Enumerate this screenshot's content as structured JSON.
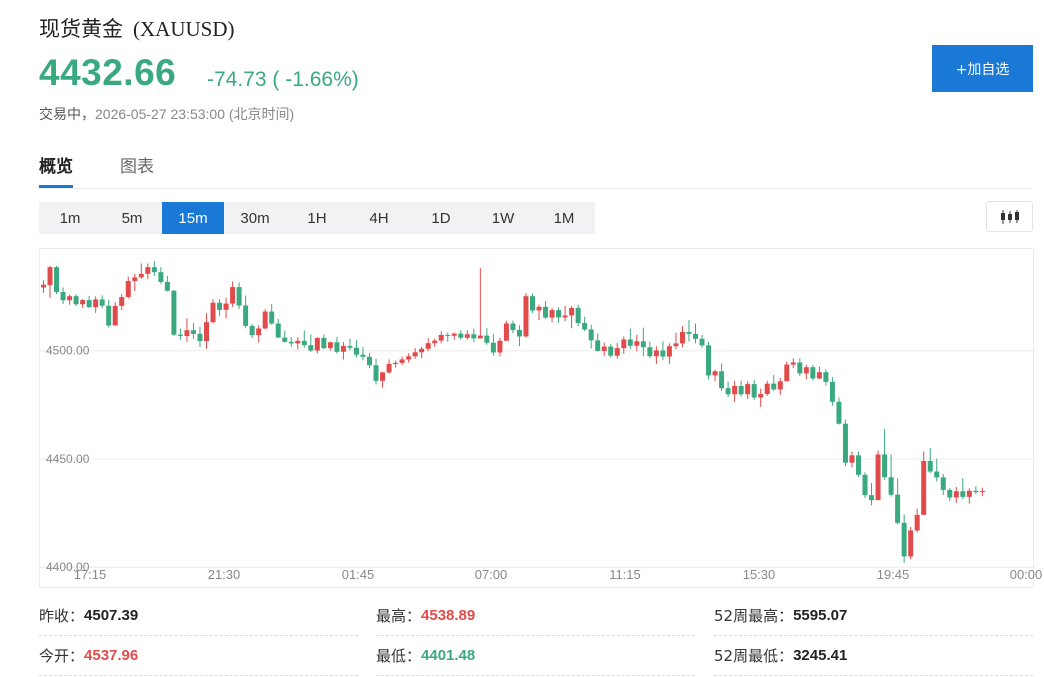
{
  "header": {
    "name": "现货黄金",
    "code": "(XAUUSD)",
    "price": "4432.66",
    "change": "-74.73 ( -1.66%)",
    "status": "交易中，",
    "timestamp": "2026-05-27 23:53:00 (北京时间)",
    "add_label": "+加自选"
  },
  "tabs": [
    {
      "label": "概览",
      "active": true
    },
    {
      "label": "图表",
      "active": false
    }
  ],
  "intervals": [
    {
      "label": "1m",
      "active": false
    },
    {
      "label": "5m",
      "active": false
    },
    {
      "label": "15m",
      "active": true
    },
    {
      "label": "30m",
      "active": false
    },
    {
      "label": "1H",
      "active": false
    },
    {
      "label": "4H",
      "active": false
    },
    {
      "label": "1D",
      "active": false
    },
    {
      "label": "1W",
      "active": false
    },
    {
      "label": "1M",
      "active": false
    }
  ],
  "colors": {
    "up": "#e24b4b",
    "down": "#3aa980",
    "accent": "#1a78d6"
  },
  "chart_data": {
    "type": "candlestick",
    "interval": "15m",
    "y_ticks": [
      "4500.00",
      "4450.00",
      "4400.00"
    ],
    "y_tick_values": [
      4500,
      4450,
      4400
    ],
    "ylim": [
      4397.8,
      4547.0
    ],
    "x_ticks": [
      "17:15",
      "21:30",
      "01:45",
      "07:00",
      "11:15",
      "15:30",
      "19:45",
      "00:00"
    ],
    "grid": true,
    "candles_ohlc": [
      [
        4529.2,
        4532.5,
        4526.8,
        4530.5
      ],
      [
        4530.3,
        4539.2,
        4524.4,
        4538.6
      ],
      [
        4538.6,
        4539.2,
        4526.2,
        4527.1
      ],
      [
        4527.1,
        4529.3,
        4521.6,
        4523.3
      ],
      [
        4523.3,
        4526.0,
        4521.3,
        4525.2
      ],
      [
        4525.2,
        4526.0,
        4520.6,
        4521.5
      ],
      [
        4521.5,
        4523.9,
        4519.8,
        4523.4
      ],
      [
        4523.4,
        4525.3,
        4519.8,
        4520.1
      ],
      [
        4520.1,
        4525.1,
        4517.5,
        4523.7
      ],
      [
        4523.7,
        4525.6,
        4519.7,
        4520.8
      ],
      [
        4520.8,
        4523.5,
        4510.7,
        4511.7
      ],
      [
        4511.7,
        4522.4,
        4511.7,
        4520.7
      ],
      [
        4520.7,
        4526.2,
        4518.7,
        4524.8
      ],
      [
        4524.8,
        4534.2,
        4524.1,
        4532.2
      ],
      [
        4532.2,
        4535.5,
        4527.6,
        4533.9
      ],
      [
        4533.9,
        4540.3,
        4533.2,
        4535.5
      ],
      [
        4535.5,
        4540.3,
        4533.0,
        4538.6
      ],
      [
        4538.6,
        4541.3,
        4534.5,
        4536.3
      ],
      [
        4536.3,
        4538.6,
        4530.9,
        4531.8
      ],
      [
        4531.8,
        4534.5,
        4527.4,
        4527.7
      ],
      [
        4527.7,
        4528.2,
        4506.8,
        4507.4
      ],
      [
        4507.4,
        4510.2,
        4505.1,
        4506.8
      ],
      [
        4506.8,
        4515.0,
        4504.0,
        4509.5
      ],
      [
        4509.5,
        4512.8,
        4505.5,
        4507.8
      ],
      [
        4507.8,
        4511.1,
        4501.7,
        4504.5
      ],
      [
        4504.5,
        4517.3,
        4500.9,
        4513.2
      ],
      [
        4513.2,
        4523.9,
        4512.6,
        4522.2
      ],
      [
        4522.2,
        4523.9,
        4516.1,
        4518.9
      ],
      [
        4518.9,
        4524.4,
        4514.9,
        4521.8
      ],
      [
        4521.8,
        4532.0,
        4520.2,
        4529.4
      ],
      [
        4529.4,
        4531.6,
        4519.2,
        4520.9
      ],
      [
        4520.9,
        4525.5,
        4510.4,
        4511.5
      ],
      [
        4511.5,
        4512.3,
        4505.8,
        4507.2
      ],
      [
        4507.2,
        4511.8,
        4503.8,
        4510.3
      ],
      [
        4510.3,
        4519.2,
        4509.9,
        4518.1
      ],
      [
        4518.1,
        4521.6,
        4512.0,
        4512.6
      ],
      [
        4512.6,
        4514.7,
        4505.9,
        4506.1
      ],
      [
        4506.1,
        4509.4,
        4503.8,
        4504.1
      ],
      [
        4504.1,
        4506.3,
        4501.9,
        4503.4
      ],
      [
        4503.4,
        4506.3,
        4500.6,
        4504.6
      ],
      [
        4504.6,
        4509.4,
        4501.3,
        4502.6
      ],
      [
        4502.6,
        4507.5,
        4499.5,
        4500.1
      ],
      [
        4500.1,
        4506.3,
        4498.8,
        4505.9
      ],
      [
        4505.9,
        4507.5,
        4500.7,
        4501.2
      ],
      [
        4501.2,
        4504.2,
        4500.1,
        4503.9
      ],
      [
        4503.9,
        4506.3,
        4498.8,
        4499.5
      ],
      [
        4499.5,
        4504.0,
        4495.9,
        4502.2
      ],
      [
        4502.2,
        4505.6,
        4500.2,
        4501.4
      ],
      [
        4501.4,
        4505.0,
        4496.8,
        4498.2
      ],
      [
        4498.2,
        4501.7,
        4495.5,
        4497.2
      ],
      [
        4497.2,
        4499.0,
        4491.9,
        4493.3
      ],
      [
        4493.3,
        4496.3,
        4484.4,
        4486.1
      ],
      [
        4486.1,
        4490.2,
        4482.9,
        4490.0
      ],
      [
        4490.0,
        4496.0,
        4489.3,
        4493.9
      ],
      [
        4493.9,
        4495.5,
        4492.3,
        4494.4
      ],
      [
        4494.4,
        4497.3,
        4493.5,
        4496.0
      ],
      [
        4496.0,
        4498.8,
        4494.5,
        4497.4
      ],
      [
        4497.4,
        4501.3,
        4496.3,
        4499.3
      ],
      [
        4499.3,
        4501.8,
        4496.6,
        4500.9
      ],
      [
        4500.9,
        4505.8,
        4499.8,
        4503.5
      ],
      [
        4503.5,
        4505.6,
        4501.9,
        4504.7
      ],
      [
        4504.7,
        4509.0,
        4503.4,
        4507.3
      ],
      [
        4507.3,
        4508.5,
        4504.2,
        4506.9
      ],
      [
        4506.9,
        4508.4,
        4505.0,
        4507.9
      ],
      [
        4507.9,
        4509.5,
        4505.1,
        4506.0
      ],
      [
        4506.0,
        4509.4,
        4505.1,
        4507.6
      ],
      [
        4507.6,
        4510.3,
        4504.0,
        4505.7
      ],
      [
        4505.7,
        4538.2,
        4505.7,
        4507.0
      ],
      [
        4507.0,
        4510.4,
        4502.8,
        4503.7
      ],
      [
        4503.7,
        4507.7,
        4497.7,
        4499.2
      ],
      [
        4499.2,
        4505.9,
        4497.4,
        4504.6
      ],
      [
        4504.6,
        4513.9,
        4504.6,
        4512.6
      ],
      [
        4512.6,
        4513.9,
        4508.1,
        4509.6
      ],
      [
        4509.6,
        4511.8,
        4502.1,
        4506.6
      ],
      [
        4506.6,
        4526.6,
        4506.1,
        4525.2
      ],
      [
        4525.2,
        4526.4,
        4517.5,
        4518.6
      ],
      [
        4518.6,
        4521.4,
        4514.2,
        4520.3
      ],
      [
        4520.3,
        4523.0,
        4514.7,
        4515.3
      ],
      [
        4515.3,
        4519.8,
        4513.1,
        4518.8
      ],
      [
        4518.8,
        4520.1,
        4512.9,
        4515.4
      ],
      [
        4515.4,
        4520.7,
        4513.6,
        4516.3
      ],
      [
        4516.3,
        4520.6,
        4510.4,
        4519.8
      ],
      [
        4519.8,
        4521.3,
        4511.4,
        4512.8
      ],
      [
        4512.8,
        4515.7,
        4509.0,
        4509.8
      ],
      [
        4509.8,
        4512.0,
        4501.0,
        4504.8
      ],
      [
        4504.8,
        4508.0,
        4499.6,
        4499.9
      ],
      [
        4499.9,
        4503.8,
        4497.5,
        4501.9
      ],
      [
        4501.9,
        4503.3,
        4496.8,
        4497.7
      ],
      [
        4497.7,
        4503.6,
        4496.4,
        4501.2
      ],
      [
        4501.2,
        4506.6,
        4498.6,
        4505.2
      ],
      [
        4505.2,
        4510.2,
        4500.9,
        4502.3
      ],
      [
        4502.3,
        4507.4,
        4499.8,
        4504.4
      ],
      [
        4504.4,
        4510.7,
        4497.4,
        4501.6
      ],
      [
        4501.6,
        4504.2,
        4496.7,
        4497.5
      ],
      [
        4497.5,
        4502.1,
        4493.9,
        4500.1
      ],
      [
        4500.1,
        4504.3,
        4495.6,
        4497.3
      ],
      [
        4497.3,
        4503.4,
        4493.9,
        4502.1
      ],
      [
        4502.1,
        4508.3,
        4500.7,
        4503.4
      ],
      [
        4503.4,
        4511.5,
        4501.6,
        4508.7
      ],
      [
        4508.7,
        4514.2,
        4504.3,
        4507.8
      ],
      [
        4507.8,
        4512.6,
        4503.4,
        4505.5
      ],
      [
        4505.5,
        4507.3,
        4501.5,
        4502.5
      ],
      [
        4502.5,
        4504.1,
        4486.8,
        4488.6
      ],
      [
        4488.6,
        4491.3,
        4485.9,
        4490.5
      ],
      [
        4490.5,
        4494.2,
        4481.5,
        4482.7
      ],
      [
        4482.7,
        4485.8,
        4478.6,
        4479.9
      ],
      [
        4479.9,
        4486.1,
        4476.4,
        4483.7
      ],
      [
        4483.7,
        4486.2,
        4478.9,
        4479.9
      ],
      [
        4479.9,
        4485.9,
        4477.7,
        4484.6
      ],
      [
        4484.6,
        4486.6,
        4477.3,
        4478.4
      ],
      [
        4478.4,
        4482.5,
        4474.0,
        4480.0
      ],
      [
        4480.0,
        4486.1,
        4479.2,
        4484.8
      ],
      [
        4484.8,
        4488.8,
        4481.5,
        4482.1
      ],
      [
        4482.1,
        4487.4,
        4479.6,
        4485.9
      ],
      [
        4485.9,
        4495.0,
        4485.9,
        4493.6
      ],
      [
        4493.6,
        4496.5,
        4491.9,
        4494.6
      ],
      [
        4494.6,
        4496.5,
        4488.4,
        4489.5
      ],
      [
        4489.5,
        4493.5,
        4486.8,
        4492.4
      ],
      [
        4492.4,
        4493.4,
        4486.2,
        4487.2
      ],
      [
        4487.2,
        4492.6,
        4486.9,
        4490.1
      ],
      [
        4490.1,
        4491.4,
        4483.9,
        4485.6
      ],
      [
        4485.6,
        4487.8,
        4474.6,
        4476.4
      ],
      [
        4476.4,
        4478.4,
        4465.9,
        4466.3
      ],
      [
        4466.3,
        4468.2,
        4446.6,
        4448.3
      ],
      [
        4448.3,
        4453.4,
        4446.2,
        4451.7
      ],
      [
        4451.7,
        4453.4,
        4441.7,
        4442.7
      ],
      [
        4442.7,
        4443.8,
        4432.0,
        4433.3
      ],
      [
        4433.3,
        4438.9,
        4428.6,
        4431.0
      ],
      [
        4431.0,
        4453.9,
        4431.0,
        4452.1
      ],
      [
        4452.1,
        4463.9,
        4440.4,
        4441.6
      ],
      [
        4441.6,
        4452.1,
        4432.6,
        4433.5
      ],
      [
        4433.5,
        4441.0,
        4419.9,
        4420.5
      ],
      [
        4420.5,
        4424.4,
        4402.1,
        4405.0
      ],
      [
        4405.0,
        4418.6,
        4403.7,
        4417.0
      ],
      [
        4417.0,
        4427.1,
        4416.1,
        4424.2
      ],
      [
        4424.2,
        4453.5,
        4424.2,
        4449.1
      ],
      [
        4449.1,
        4455.1,
        4443.5,
        4444.2
      ],
      [
        4444.2,
        4450.1,
        4439.6,
        4441.5
      ],
      [
        4441.5,
        4443.1,
        4433.4,
        4435.7
      ],
      [
        4435.7,
        4436.6,
        4430.5,
        4432.2
      ],
      [
        4432.2,
        4437.1,
        4429.7,
        4435.1
      ],
      [
        4435.1,
        4441.2,
        4431.5,
        4432.5
      ],
      [
        4432.5,
        4436.5,
        4429.4,
        4435.3
      ],
      [
        4435.3,
        4437.4,
        4433.8,
        4434.7
      ],
      [
        4434.7,
        4436.7,
        4432.8,
        4435.2
      ]
    ]
  },
  "stats": [
    {
      "label": "昨收：",
      "value": "4507.39",
      "tone": "neutral"
    },
    {
      "label": "最高：",
      "value": "4538.89",
      "tone": "up"
    },
    {
      "label": "52周最高：",
      "value": "5595.07",
      "tone": "neutral"
    },
    {
      "label": "今开：",
      "value": "4537.96",
      "tone": "up"
    },
    {
      "label": "最低：",
      "value": "4401.48",
      "tone": "down"
    },
    {
      "label": "52周最低：",
      "value": "3245.41",
      "tone": "neutral"
    }
  ]
}
